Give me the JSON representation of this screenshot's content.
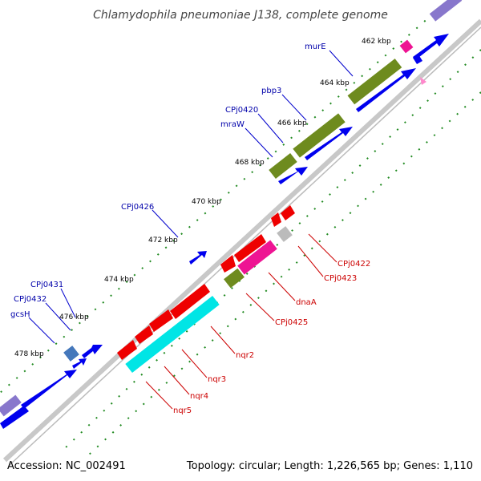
{
  "title": "Chlamydophila pneumoniae J138, complete genome",
  "footer": {
    "accession": "Accession: NC_002491",
    "summary": "Topology: circular; Length: 1,226,565 bp; Genes: 1,110"
  },
  "ticks": [
    "462 kbp",
    "464 kbp",
    "466 kbp",
    "468 kbp",
    "470 kbp",
    "472 kbp",
    "474 kbp",
    "476 kbp",
    "478 kbp"
  ],
  "genes_forward": [
    "murE",
    "pbp3",
    "CPj0420",
    "mraW",
    "CPj0426",
    "CPj0431",
    "CPj0432",
    "gcsH"
  ],
  "genes_reverse": [
    "CPj0422",
    "CPj0423",
    "dnaA",
    "CPj0425",
    "nqr2",
    "nqr3",
    "nqr4",
    "nqr5"
  ],
  "colors": {
    "forward_cds": "#0000ee",
    "reverse_cds": "#ee0000",
    "olive": "#6e8b1e",
    "cyan": "#00e5e5",
    "magenta": "#ee1493",
    "backbone": "#808080",
    "tick_green": "#228b22"
  }
}
